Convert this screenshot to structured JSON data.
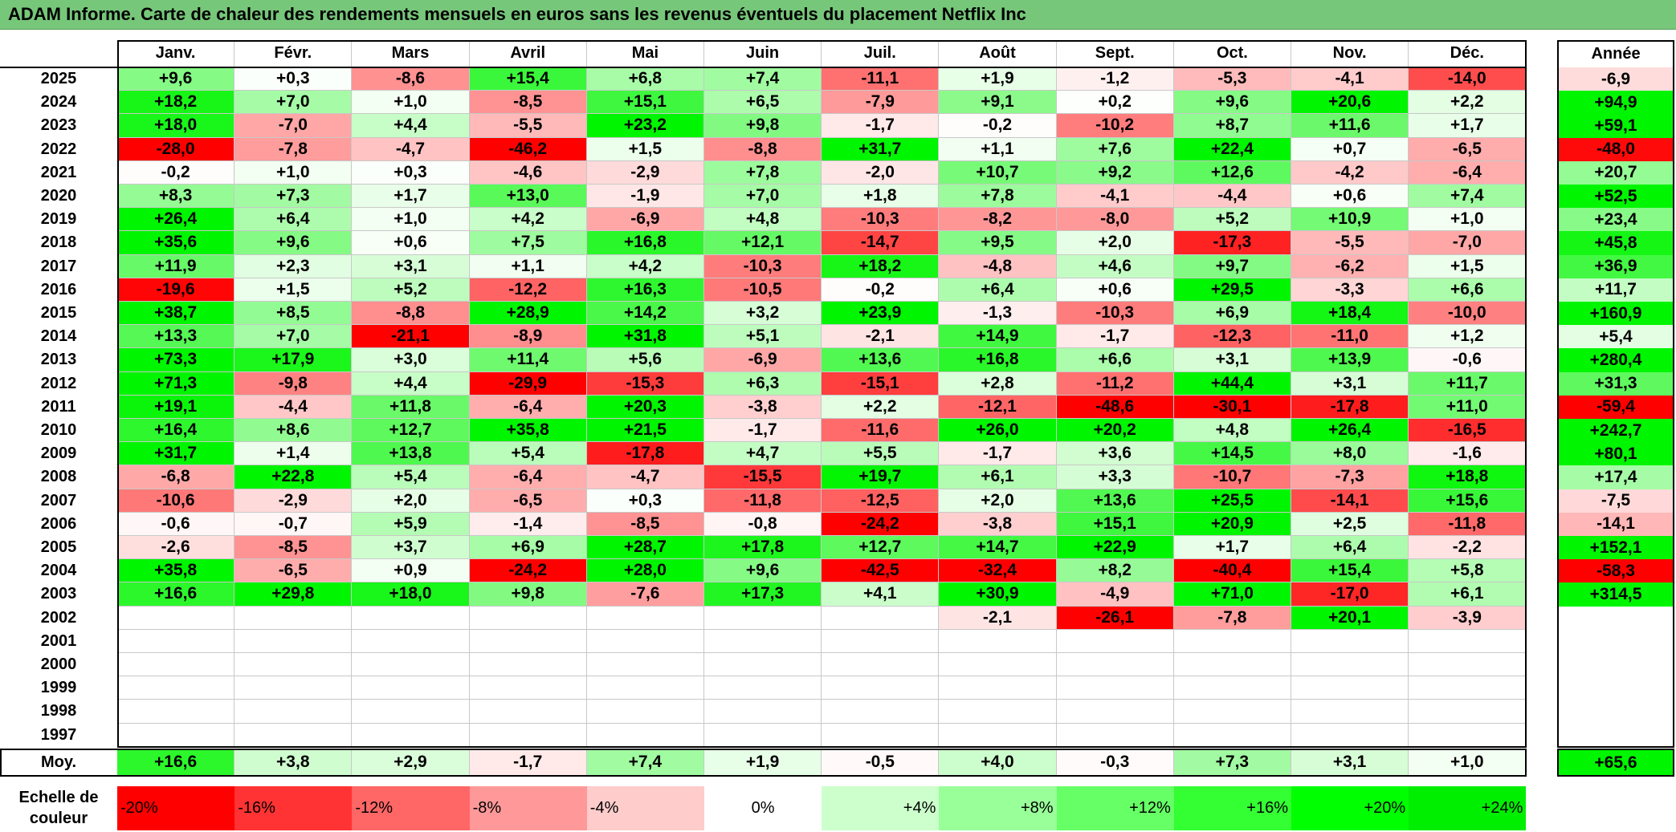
{
  "title": "ADAM Informe. Carte de chaleur des rendements mensuels en euros sans les revenus éventuels du placement Netflix Inc",
  "chart_data": {
    "type": "heatmap",
    "months": [
      "Janv.",
      "Févr.",
      "Mars",
      "Avril",
      "Mai",
      "Juin",
      "Juil.",
      "Août",
      "Sept.",
      "Oct.",
      "Nov.",
      "Déc."
    ],
    "year_header": "Année",
    "rows": [
      {
        "year": "2025",
        "values": [
          "+9,6",
          "+0,3",
          "-8,6",
          "+15,4",
          "+6,8",
          "+7,4",
          "-11,1",
          "+1,9",
          "-1,2",
          "-5,3",
          "-4,1",
          "-14,0"
        ],
        "annual": "-6,9"
      },
      {
        "year": "2024",
        "values": [
          "+18,2",
          "+7,0",
          "+1,0",
          "-8,5",
          "+15,1",
          "+6,5",
          "-7,9",
          "+9,1",
          "+0,2",
          "+9,6",
          "+20,6",
          "+2,2"
        ],
        "annual": "+94,9"
      },
      {
        "year": "2023",
        "values": [
          "+18,0",
          "-7,0",
          "+4,4",
          "-5,5",
          "+23,2",
          "+9,8",
          "-1,7",
          "-0,2",
          "-10,2",
          "+8,7",
          "+11,6",
          "+1,7"
        ],
        "annual": "+59,1"
      },
      {
        "year": "2022",
        "values": [
          "-28,0",
          "-7,8",
          "-4,7",
          "-46,2",
          "+1,5",
          "-8,8",
          "+31,7",
          "+1,1",
          "+7,6",
          "+22,4",
          "+0,7",
          "-6,5"
        ],
        "annual": "-48,0"
      },
      {
        "year": "2021",
        "values": [
          "-0,2",
          "+1,0",
          "+0,3",
          "-4,6",
          "-2,9",
          "+7,8",
          "-2,0",
          "+10,7",
          "+9,2",
          "+12,6",
          "-4,2",
          "-6,4"
        ],
        "annual": "+20,7"
      },
      {
        "year": "2020",
        "values": [
          "+8,3",
          "+7,3",
          "+1,7",
          "+13,0",
          "-1,9",
          "+7,0",
          "+1,8",
          "+7,8",
          "-4,1",
          "-4,4",
          "+0,6",
          "+7,4"
        ],
        "annual": "+52,5"
      },
      {
        "year": "2019",
        "values": [
          "+26,4",
          "+6,4",
          "+1,0",
          "+4,2",
          "-6,9",
          "+4,8",
          "-10,3",
          "-8,2",
          "-8,0",
          "+5,2",
          "+10,9",
          "+1,0"
        ],
        "annual": "+23,4"
      },
      {
        "year": "2018",
        "values": [
          "+35,6",
          "+9,6",
          "+0,6",
          "+7,5",
          "+16,8",
          "+12,1",
          "-14,7",
          "+9,5",
          "+2,0",
          "-17,3",
          "-5,5",
          "-7,0"
        ],
        "annual": "+45,8"
      },
      {
        "year": "2017",
        "values": [
          "+11,9",
          "+2,3",
          "+3,1",
          "+1,1",
          "+4,2",
          "-10,3",
          "+18,2",
          "-4,8",
          "+4,6",
          "+9,7",
          "-6,2",
          "+1,5"
        ],
        "annual": "+36,9"
      },
      {
        "year": "2016",
        "values": [
          "-19,6",
          "+1,5",
          "+5,2",
          "-12,2",
          "+16,3",
          "-10,5",
          "-0,2",
          "+6,4",
          "+0,6",
          "+29,5",
          "-3,3",
          "+6,6"
        ],
        "annual": "+11,7"
      },
      {
        "year": "2015",
        "values": [
          "+38,7",
          "+8,5",
          "-8,8",
          "+28,9",
          "+14,2",
          "+3,2",
          "+23,9",
          "-1,3",
          "-10,3",
          "+6,9",
          "+18,4",
          "-10,0"
        ],
        "annual": "+160,9"
      },
      {
        "year": "2014",
        "values": [
          "+13,3",
          "+7,0",
          "-21,1",
          "-8,9",
          "+31,8",
          "+5,1",
          "-2,1",
          "+14,9",
          "-1,7",
          "-12,3",
          "-11,0",
          "+1,2"
        ],
        "annual": "+5,4"
      },
      {
        "year": "2013",
        "values": [
          "+73,3",
          "+17,9",
          "+3,0",
          "+11,4",
          "+5,6",
          "-6,9",
          "+13,6",
          "+16,8",
          "+6,6",
          "+3,1",
          "+13,9",
          "-0,6"
        ],
        "annual": "+280,4"
      },
      {
        "year": "2012",
        "values": [
          "+71,3",
          "-9,8",
          "+4,4",
          "-29,9",
          "-15,3",
          "+6,3",
          "-15,1",
          "+2,8",
          "-11,2",
          "+44,4",
          "+3,1",
          "+11,7"
        ],
        "annual": "+31,3"
      },
      {
        "year": "2011",
        "values": [
          "+19,1",
          "-4,4",
          "+11,8",
          "-6,4",
          "+20,3",
          "-3,8",
          "+2,2",
          "-12,1",
          "-48,6",
          "-30,1",
          "-17,8",
          "+11,0"
        ],
        "annual": "-59,4"
      },
      {
        "year": "2010",
        "values": [
          "+16,4",
          "+8,6",
          "+12,7",
          "+35,8",
          "+21,5",
          "-1,7",
          "-11,6",
          "+26,0",
          "+20,2",
          "+4,8",
          "+26,4",
          "-16,5"
        ],
        "annual": "+242,7"
      },
      {
        "year": "2009",
        "values": [
          "+31,7",
          "+1,4",
          "+13,8",
          "+5,4",
          "-17,8",
          "+4,7",
          "+5,5",
          "-1,7",
          "+3,6",
          "+14,5",
          "+8,0",
          "-1,6"
        ],
        "annual": "+80,1"
      },
      {
        "year": "2008",
        "values": [
          "-6,8",
          "+22,8",
          "+5,4",
          "-6,4",
          "-4,7",
          "-15,5",
          "+19,7",
          "+6,1",
          "+3,3",
          "-10,7",
          "-7,3",
          "+18,8"
        ],
        "annual": "+17,4"
      },
      {
        "year": "2007",
        "values": [
          "-10,6",
          "-2,9",
          "+2,0",
          "-6,5",
          "+0,3",
          "-11,8",
          "-12,5",
          "+2,0",
          "+13,6",
          "+25,5",
          "-14,1",
          "+15,6"
        ],
        "annual": "-7,5"
      },
      {
        "year": "2006",
        "values": [
          "-0,6",
          "-0,7",
          "+5,9",
          "-1,4",
          "-8,5",
          "-0,8",
          "-24,2",
          "-3,8",
          "+15,1",
          "+20,9",
          "+2,5",
          "-11,8"
        ],
        "annual": "-14,1"
      },
      {
        "year": "2005",
        "values": [
          "-2,6",
          "-8,5",
          "+3,7",
          "+6,9",
          "+28,7",
          "+17,8",
          "+12,7",
          "+14,7",
          "+22,9",
          "+1,7",
          "+6,4",
          "-2,2"
        ],
        "annual": "+152,1"
      },
      {
        "year": "2004",
        "values": [
          "+35,8",
          "-6,5",
          "+0,9",
          "-24,2",
          "+28,0",
          "+9,6",
          "-42,5",
          "-32,4",
          "+8,2",
          "-40,4",
          "+15,4",
          "+5,8"
        ],
        "annual": "-58,3"
      },
      {
        "year": "2003",
        "values": [
          "+16,6",
          "+29,8",
          "+18,0",
          "+9,8",
          "-7,6",
          "+17,3",
          "+4,1",
          "+30,9",
          "-4,9",
          "+71,0",
          "-17,0",
          "+6,1"
        ],
        "annual": "+314,5"
      },
      {
        "year": "2002",
        "values": [
          "",
          "",
          "",
          "",
          "",
          "",
          "",
          "-2,1",
          "-26,1",
          "-7,8",
          "+20,1",
          "-3,9"
        ],
        "annual": ""
      },
      {
        "year": "2001",
        "values": [
          "",
          "",
          "",
          "",
          "",
          "",
          "",
          "",
          "",
          "",
          "",
          ""
        ],
        "annual": ""
      },
      {
        "year": "2000",
        "values": [
          "",
          "",
          "",
          "",
          "",
          "",
          "",
          "",
          "",
          "",
          "",
          ""
        ],
        "annual": ""
      },
      {
        "year": "1999",
        "values": [
          "",
          "",
          "",
          "",
          "",
          "",
          "",
          "",
          "",
          "",
          "",
          ""
        ],
        "annual": ""
      },
      {
        "year": "1998",
        "values": [
          "",
          "",
          "",
          "",
          "",
          "",
          "",
          "",
          "",
          "",
          "",
          ""
        ],
        "annual": ""
      },
      {
        "year": "1997",
        "values": [
          "",
          "",
          "",
          "",
          "",
          "",
          "",
          "",
          "",
          "",
          "",
          ""
        ],
        "annual": ""
      }
    ],
    "average": {
      "label": "Moy.",
      "values": [
        "+16,6",
        "+3,8",
        "+2,9",
        "-1,7",
        "+7,4",
        "+1,9",
        "-0,5",
        "+4,0",
        "-0,3",
        "+7,3",
        "+3,1",
        "+1,0"
      ],
      "annual": "+65,6"
    },
    "scale": {
      "label_line1": "Echelle de",
      "label_line2": "couleur",
      "entries": [
        {
          "label": "-20%",
          "value": -20,
          "color": "#ff0000"
        },
        {
          "label": "-16%",
          "value": -16,
          "color": "#ff3333"
        },
        {
          "label": "-12%",
          "value": -12,
          "color": "#ff6666"
        },
        {
          "label": "-8%",
          "value": -8,
          "color": "#ff9999"
        },
        {
          "label": "-4%",
          "value": -4,
          "color": "#ffcccc"
        },
        {
          "label": "0%",
          "value": 0,
          "color": "#ffffff"
        },
        {
          "label": "+4%",
          "value": 4,
          "color": "#ccffcc"
        },
        {
          "label": "+8%",
          "value": 8,
          "color": "#99ff99"
        },
        {
          "label": "+12%",
          "value": 12,
          "color": "#66ff66"
        },
        {
          "label": "+16%",
          "value": 16,
          "color": "#33ff33"
        },
        {
          "label": "+20%",
          "value": 20,
          "color": "#00ff00"
        },
        {
          "label": "+24%",
          "value": 24,
          "color": "#00ee00"
        }
      ]
    }
  }
}
